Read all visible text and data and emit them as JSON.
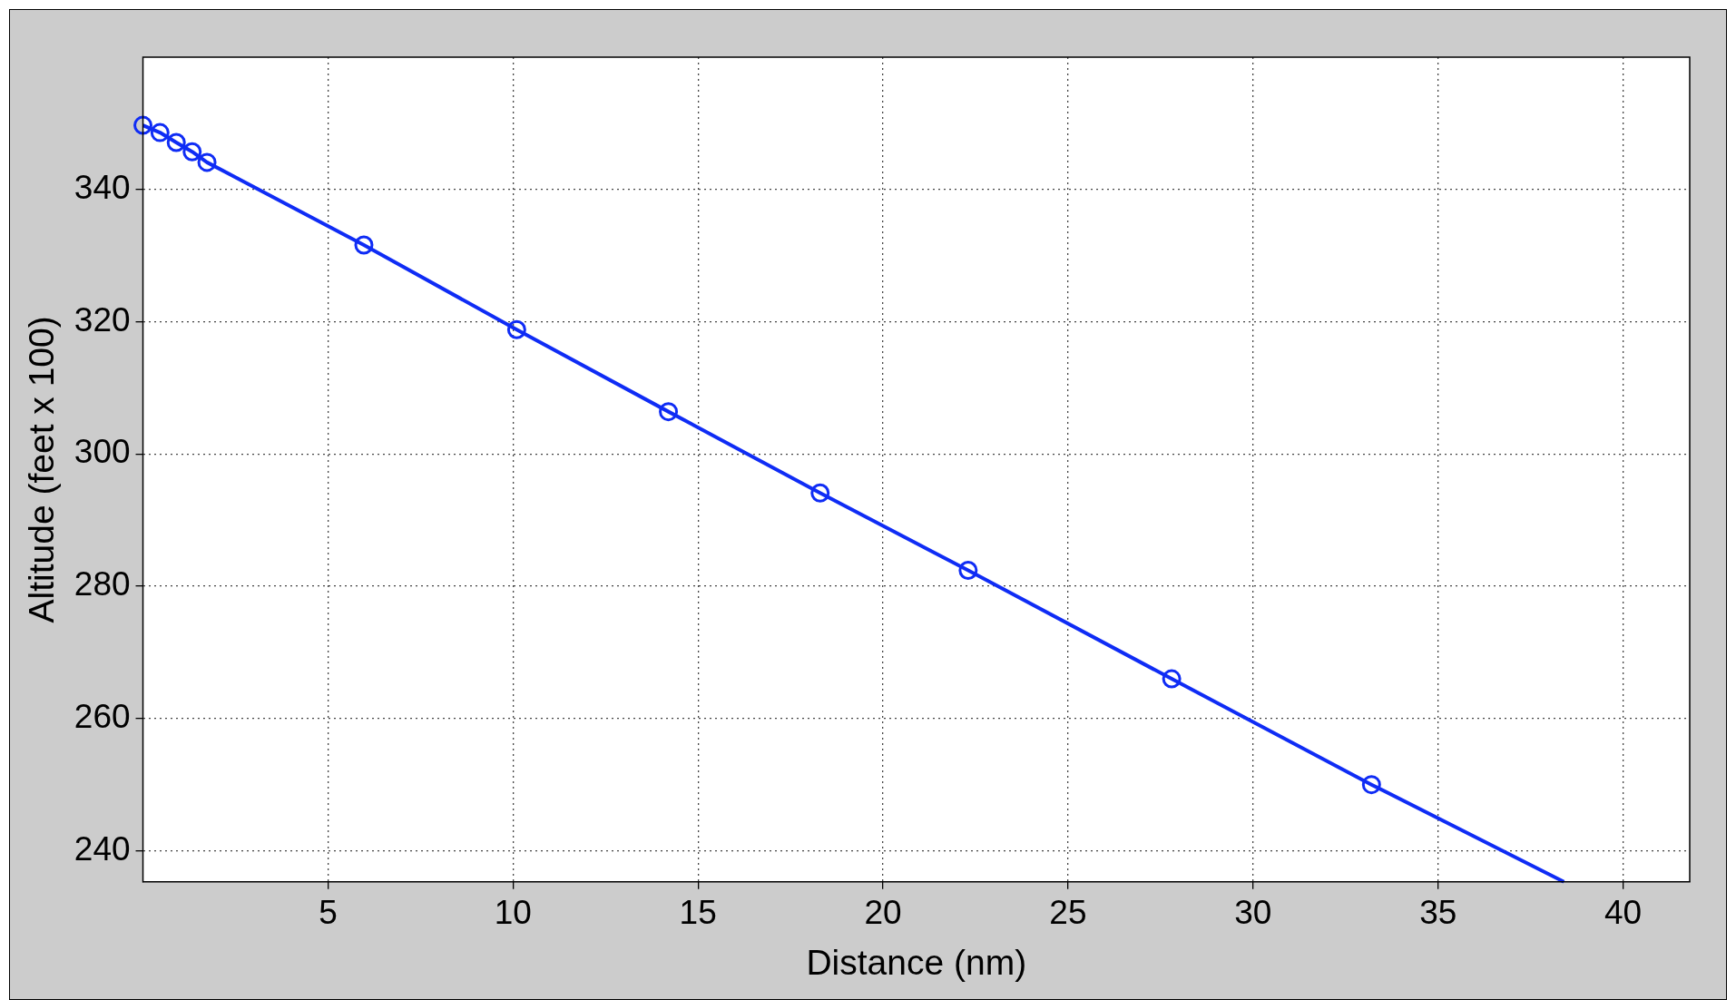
{
  "chart_data": {
    "type": "line",
    "xlabel": "Distance (nm)",
    "ylabel": "Altitude (feet x 100)",
    "x": [
      0,
      0.46,
      0.9,
      1.33,
      1.73,
      5.97,
      10.1,
      14.2,
      18.3,
      22.3,
      27.8,
      33.2,
      38.4
    ],
    "series": [
      {
        "color": "#0f2cf5",
        "values": [
          349.7,
          348.6,
          347.1,
          345.7,
          344.1,
          331.6,
          318.8,
          306.4,
          294.1,
          282.4,
          266.0,
          250.0,
          235.3
        ]
      }
    ],
    "xlim": [
      0,
      41.8
    ],
    "ylim": [
      235.3,
      360
    ],
    "xticks": [
      5,
      10,
      15,
      20,
      25,
      30,
      35,
      40
    ],
    "yticks": [
      240,
      260,
      280,
      300,
      320,
      340
    ],
    "grid": true,
    "marker": "circle",
    "line_style": "solid",
    "legend": false
  }
}
